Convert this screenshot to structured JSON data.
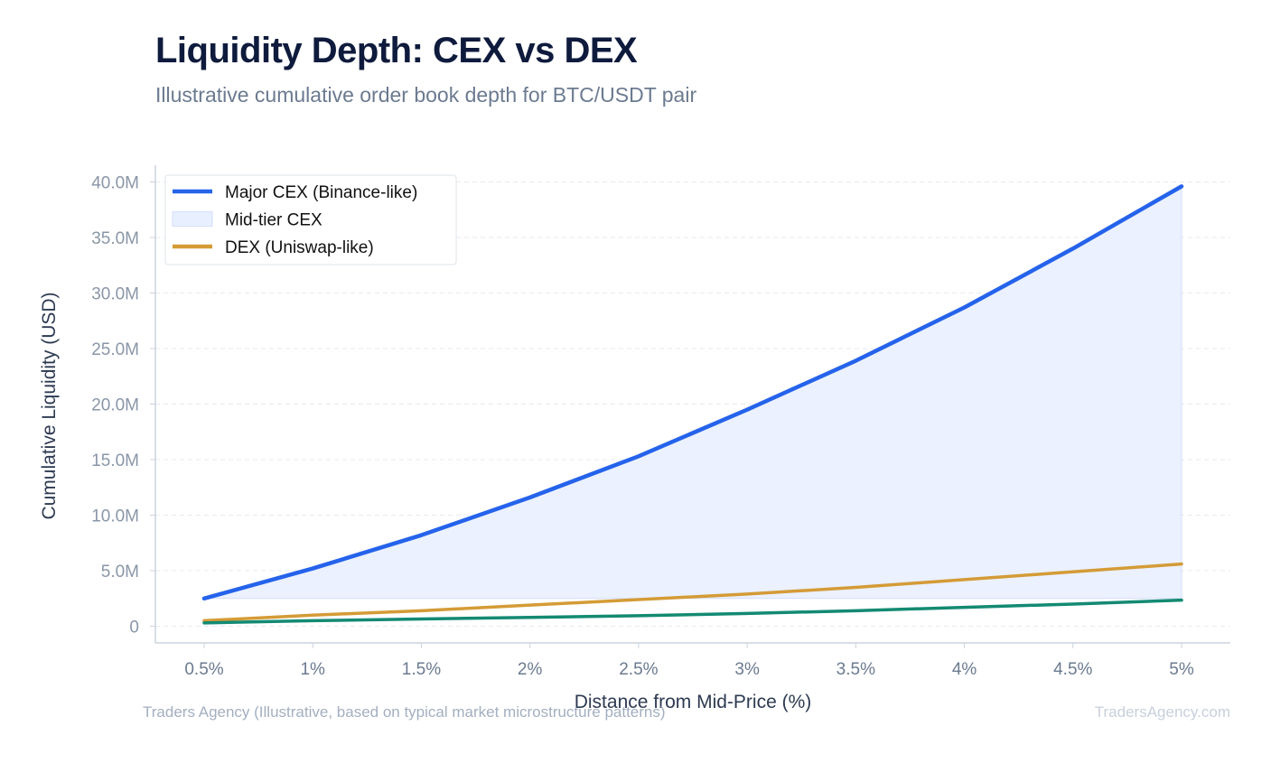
{
  "header": {
    "title": "Liquidity Depth: CEX vs DEX",
    "subtitle": "Illustrative cumulative order book depth for BTC/USDT pair"
  },
  "footer": {
    "source": "Traders Agency (Illustrative, based on typical market microstructure patterns)",
    "brand": "TradersAgency.com"
  },
  "chart_data": {
    "type": "line",
    "xlabel": "Distance from Mid-Price (%)",
    "ylabel": "Cumulative Liquidity (USD)",
    "categories": [
      "0.5%",
      "1%",
      "1.5%",
      "2%",
      "2.5%",
      "3%",
      "3.5%",
      "4%",
      "4.5%",
      "5%"
    ],
    "ylim": [
      -1500000,
      41500000
    ],
    "yticks": [
      0,
      5000000,
      10000000,
      15000000,
      20000000,
      25000000,
      30000000,
      35000000,
      40000000
    ],
    "ytick_labels": [
      "0",
      "5.0M",
      "10.0M",
      "15.0M",
      "20.0M",
      "25.0M",
      "30.0M",
      "35.0M",
      "40.0M"
    ],
    "grid": true,
    "legend_position": "top-left",
    "series": [
      {
        "name": "Major CEX (Binance-like)",
        "kind": "line",
        "color": "#2563eb",
        "values": [
          2500000,
          5200000,
          8200000,
          11600000,
          15300000,
          19500000,
          23900000,
          28700000,
          34000000,
          39600000
        ]
      },
      {
        "name": "Mid-tier CEX",
        "kind": "area",
        "color": "#e8efff",
        "values": [
          2500000,
          5200000,
          8200000,
          11600000,
          15300000,
          19500000,
          23900000,
          28700000,
          34000000,
          39600000
        ],
        "baseline": 2500000
      },
      {
        "name": "DEX (Uniswap-like)",
        "kind": "line",
        "color": "#d49b36",
        "values": [
          500000,
          1000000,
          1400000,
          1900000,
          2400000,
          2900000,
          3500000,
          4200000,
          4900000,
          5600000
        ]
      },
      {
        "name": "",
        "kind": "line",
        "color": "#138a72",
        "values": [
          300000,
          500000,
          650000,
          800000,
          950000,
          1150000,
          1400000,
          1700000,
          2000000,
          2350000
        ]
      }
    ]
  }
}
